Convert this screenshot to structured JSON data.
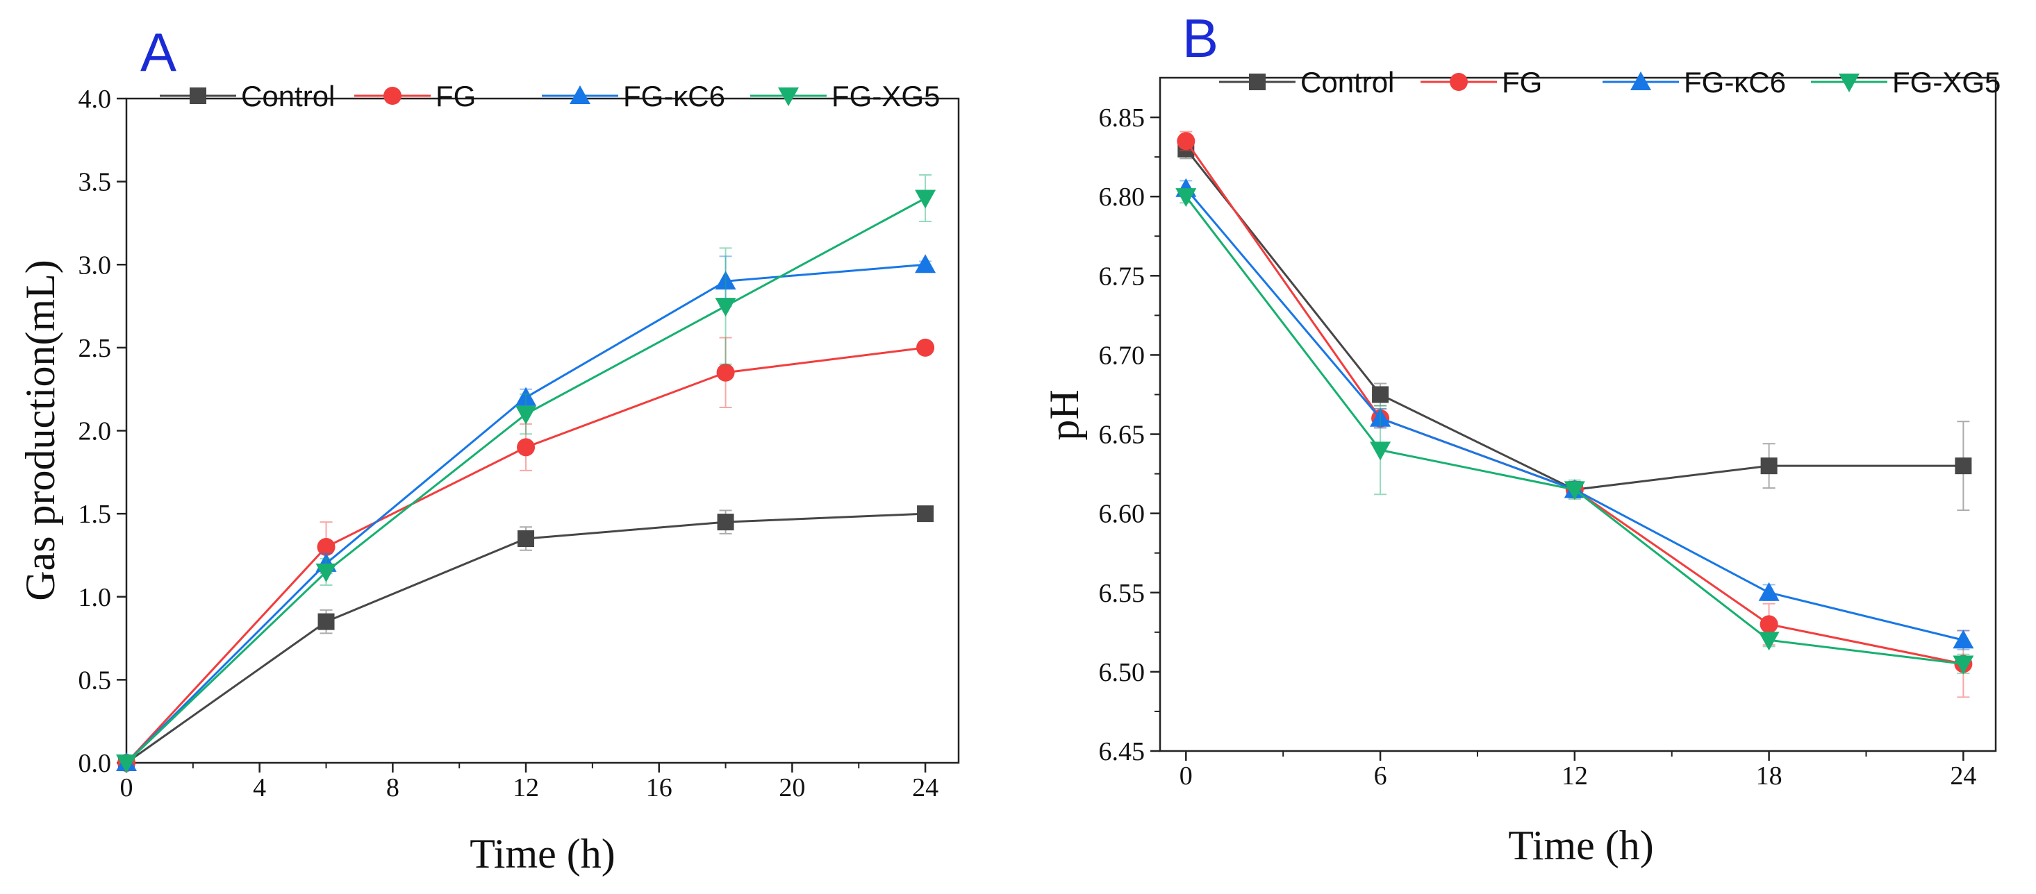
{
  "chart_data": [
    {
      "panel": "A",
      "type": "line",
      "title": "",
      "xlabel": "Time (h)",
      "ylabel": "Gas production(mL)",
      "xlim": [
        0,
        25
      ],
      "ylim": [
        0,
        4.0
      ],
      "xticks": [
        0,
        4,
        8,
        12,
        16,
        20,
        24
      ],
      "xtick_labels": [
        "0",
        "4",
        "8",
        "12",
        "16",
        "20",
        "24"
      ],
      "yticks": [
        0,
        0.5,
        1.0,
        1.5,
        2.0,
        2.5,
        3.0,
        3.5,
        4.0
      ],
      "ytick_labels": [
        "0.0",
        "0.5",
        "1.0",
        "1.5",
        "2.0",
        "2.5",
        "3.0",
        "3.5",
        "4.0"
      ],
      "legend_position": "top",
      "x": [
        0,
        6,
        12,
        18,
        24
      ],
      "series": [
        {
          "name": "Control",
          "color": "#474747",
          "marker": "square",
          "values": [
            0,
            0.85,
            1.35,
            1.45,
            1.5
          ],
          "errors": [
            0,
            0.07,
            0.07,
            0.07,
            0.03
          ]
        },
        {
          "name": "FG",
          "color": "#f23d3d",
          "marker": "circle",
          "values": [
            0,
            1.3,
            1.9,
            2.35,
            2.5
          ],
          "errors": [
            0,
            0.15,
            0.14,
            0.21,
            0.02
          ]
        },
        {
          "name": "FG-κC6",
          "color": "#1877e6",
          "marker": "triangle-up",
          "values": [
            0,
            1.2,
            2.2,
            2.9,
            3.0
          ],
          "errors": [
            0,
            0.06,
            0.05,
            0.15,
            0.02
          ]
        },
        {
          "name": "FG-XG5",
          "color": "#17b070",
          "marker": "triangle-down",
          "values": [
            0,
            1.15,
            2.1,
            2.75,
            3.4
          ],
          "errors": [
            0,
            0.08,
            0.12,
            0.35,
            0.14
          ]
        }
      ]
    },
    {
      "panel": "B",
      "type": "line",
      "title": "",
      "xlabel": "Time (h)",
      "ylabel": "pH",
      "xlim": [
        -0.8,
        25
      ],
      "ylim": [
        6.45,
        6.875
      ],
      "xticks": [
        0,
        6,
        12,
        18,
        24
      ],
      "xtick_labels": [
        "0",
        "6",
        "12",
        "18",
        "24"
      ],
      "yticks": [
        6.45,
        6.5,
        6.55,
        6.6,
        6.65,
        6.7,
        6.75,
        6.8,
        6.85
      ],
      "ytick_labels": [
        "6.45",
        "6.50",
        "6.55",
        "6.60",
        "6.65",
        "6.70",
        "6.75",
        "6.80",
        "6.85"
      ],
      "legend_position": "top",
      "x": [
        0,
        6,
        12,
        18,
        24
      ],
      "series": [
        {
          "name": "Control",
          "color": "#474747",
          "marker": "square",
          "values": [
            6.83,
            6.675,
            6.615,
            6.63,
            6.63
          ],
          "errors": [
            0.006,
            0.007,
            0.005,
            0.014,
            0.028
          ]
        },
        {
          "name": "FG",
          "color": "#f23d3d",
          "marker": "circle",
          "values": [
            6.835,
            6.66,
            6.615,
            6.53,
            6.505
          ],
          "errors": [
            0.006,
            0.006,
            0.005,
            0.013,
            0.021
          ]
        },
        {
          "name": "FG-κC6",
          "color": "#1877e6",
          "marker": "triangle-up",
          "values": [
            6.805,
            6.66,
            6.615,
            6.55,
            6.52
          ],
          "errors": [
            0.005,
            0.006,
            0.005,
            0.005,
            0.006
          ]
        },
        {
          "name": "FG-XG5",
          "color": "#17b070",
          "marker": "triangle-down",
          "values": [
            6.8,
            6.64,
            6.615,
            6.52,
            6.505
          ],
          "errors": [
            0.004,
            0.028,
            0.006,
            0.004,
            0.006
          ]
        }
      ]
    }
  ]
}
